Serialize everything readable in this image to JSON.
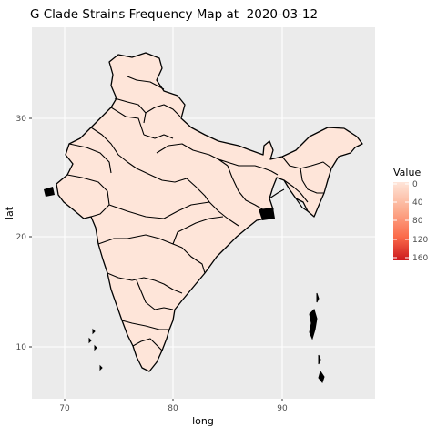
{
  "title": "G Clade Strains Frequency Map at  2020-03-12",
  "axes": {
    "x": {
      "label": "long",
      "ticks": [
        "70",
        "80",
        "90"
      ]
    },
    "y": {
      "label": "lat",
      "ticks": [
        "10",
        "20",
        "30"
      ]
    }
  },
  "legend": {
    "title": "Value",
    "labels": [
      "0",
      "40",
      "80",
      "120",
      "160"
    ],
    "color_low": "#fee0d2",
    "color_high": "#cb181d"
  },
  "colors": {
    "panel_bg": "#ebebeb",
    "grid": "#ffffff",
    "region_fill": "#fee5d9",
    "region_stroke": "#000000"
  },
  "chart_data": {
    "type": "heatmap",
    "title": "G Clade Strains Frequency Map at  2020-03-12",
    "xlabel": "long",
    "ylabel": "lat",
    "xlim": [
      67.5,
      98
    ],
    "ylim": [
      5.8,
      38.6
    ],
    "x_ticks": [
      70,
      80,
      90
    ],
    "y_ticks": [
      10,
      20,
      30
    ],
    "grid": true,
    "legend_position": "right",
    "legend_title": "Value",
    "legend_range": [
      0,
      160
    ],
    "all_regions_value": 0
  }
}
